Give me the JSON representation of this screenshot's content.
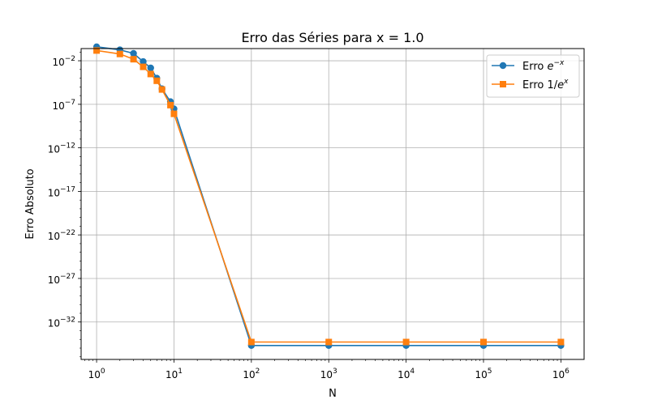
{
  "chart_data": {
    "type": "line",
    "title": "Erro das Séries para x = 1.0",
    "xlabel": "N",
    "ylabel": "Erro Absoluto",
    "xscale": "log",
    "yscale": "log",
    "xlim_exp": [
      -0.2,
      6.3
    ],
    "ylim_exp": [
      -36.3,
      -0.6
    ],
    "xticks": [
      {
        "exp": 0,
        "base": "10",
        "sup": "0"
      },
      {
        "exp": 1,
        "base": "10",
        "sup": "1"
      },
      {
        "exp": 2,
        "base": "10",
        "sup": "2"
      },
      {
        "exp": 3,
        "base": "10",
        "sup": "3"
      },
      {
        "exp": 4,
        "base": "10",
        "sup": "4"
      },
      {
        "exp": 5,
        "base": "10",
        "sup": "5"
      },
      {
        "exp": 6,
        "base": "10",
        "sup": "6"
      }
    ],
    "yticks": [
      {
        "exp": -2,
        "base": "10",
        "sup": "−2"
      },
      {
        "exp": -7,
        "base": "10",
        "sup": "−7"
      },
      {
        "exp": -12,
        "base": "10",
        "sup": "−12"
      },
      {
        "exp": -17,
        "base": "10",
        "sup": "−17"
      },
      {
        "exp": -22,
        "base": "10",
        "sup": "−22"
      },
      {
        "exp": -27,
        "base": "10",
        "sup": "−27"
      },
      {
        "exp": -32,
        "base": "10",
        "sup": "−32"
      }
    ],
    "grid": true,
    "legend_position": "top-right",
    "series": [
      {
        "name_prefix": "Erro ",
        "name_math": "e",
        "name_sup": "−x",
        "name_suffix": "",
        "color": "#1f77b4",
        "marker": "circle",
        "x": [
          1,
          2,
          3,
          4,
          5,
          6,
          7,
          9,
          10,
          100,
          1000,
          10000,
          100000,
          1000000
        ],
        "y": [
          0.4,
          0.18,
          0.07,
          0.008,
          0.0015,
          0.0001,
          6e-06,
          2e-07,
          3e-08,
          2e-35,
          2e-35,
          2e-35,
          2e-35,
          2e-35
        ]
      },
      {
        "name_prefix": "Erro 1/",
        "name_math": "e",
        "name_sup": "x",
        "name_suffix": "",
        "color": "#ff7f0e",
        "marker": "square",
        "x": [
          1,
          2,
          3,
          4,
          5,
          6,
          7,
          9,
          10,
          100,
          1000,
          10000,
          100000,
          1000000
        ],
        "y": [
          0.15,
          0.06,
          0.015,
          0.002,
          0.0003,
          5e-05,
          5e-06,
          8e-08,
          8e-09,
          5e-35,
          5e-35,
          5e-35,
          5e-35,
          5e-35
        ]
      }
    ]
  }
}
